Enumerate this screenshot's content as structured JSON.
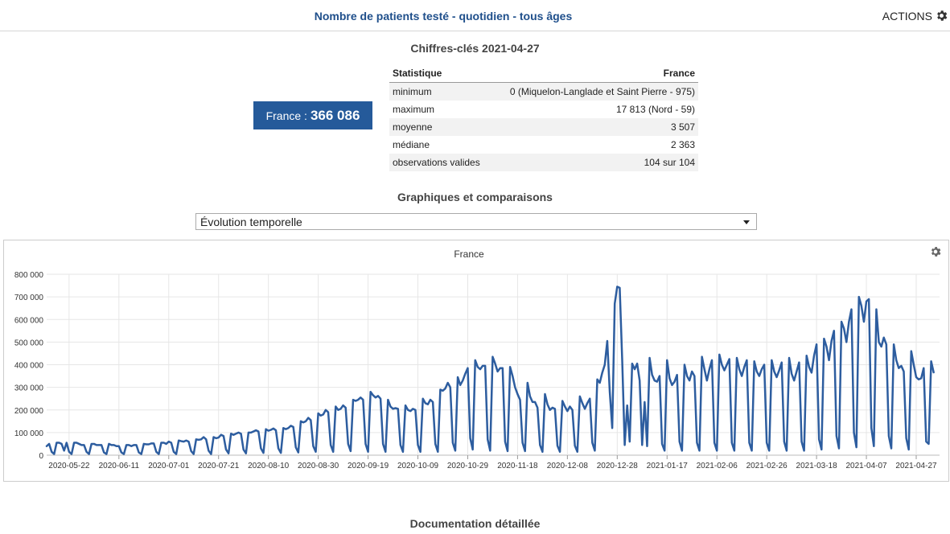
{
  "header": {
    "title": "Nombre de patients testé - quotidien - tous âges",
    "actions_label": "ACTIONS",
    "actions_icon": "gear-icon"
  },
  "key_figures": {
    "title": "Chiffres-clés 2021-04-27",
    "badge_label": "France :",
    "badge_value": "366 086",
    "table": {
      "col_stat": "Statistique",
      "col_region": "France",
      "rows": [
        {
          "label": "minimum",
          "value": "0 (Miquelon-Langlade et Saint Pierre - 975)"
        },
        {
          "label": "maximum",
          "value": "17 813 (Nord - 59)"
        },
        {
          "label": "moyenne",
          "value": "3 507"
        },
        {
          "label": "médiane",
          "value": "2 363"
        },
        {
          "label": "observations valides",
          "value": "104 sur 104"
        }
      ]
    }
  },
  "graphs": {
    "title": "Graphiques et comparaisons",
    "select_value": "Évolution temporelle"
  },
  "documentation": {
    "title": "Documentation détaillée"
  },
  "colors": {
    "accent": "#255a9a",
    "line": "#2d5d9f",
    "title": "#1f4f8b"
  },
  "chart_data": {
    "type": "line",
    "title": "France",
    "xlabel": "",
    "ylabel": "",
    "ylim": [
      0,
      800000
    ],
    "yticks": [
      0,
      100000,
      200000,
      300000,
      400000,
      500000,
      600000,
      700000,
      800000
    ],
    "ytick_labels": [
      "0",
      "100 000",
      "200 000",
      "300 000",
      "400 000",
      "500 000",
      "600 000",
      "700 000",
      "800 000"
    ],
    "xlim": [
      "2020-05-13",
      "2021-04-27"
    ],
    "xtick_labels": [
      "2020-05-22",
      "2020-06-11",
      "2020-07-01",
      "2020-07-21",
      "2020-08-10",
      "2020-08-30",
      "2020-09-19",
      "2020-10-09",
      "2020-10-29",
      "2020-11-18",
      "2020-12-08",
      "2020-12-28",
      "2021-01-17",
      "2021-02-06",
      "2021-02-26",
      "2021-03-18",
      "2021-04-07",
      "2021-04-27"
    ],
    "grid": true,
    "x_start": "2020-05-13",
    "x_step_days": 1,
    "series": [
      {
        "values": [
          40000,
          50000,
          15000,
          5000,
          55000,
          55000,
          50000,
          20000,
          55000,
          15000,
          5000,
          55000,
          55000,
          50000,
          45000,
          45000,
          15000,
          5000,
          50000,
          50000,
          45000,
          45000,
          45000,
          12000,
          5000,
          50000,
          45000,
          45000,
          40000,
          40000,
          12000,
          5000,
          45000,
          45000,
          40000,
          45000,
          45000,
          12000,
          5000,
          50000,
          48000,
          48000,
          52000,
          52000,
          15000,
          5000,
          55000,
          55000,
          50000,
          60000,
          55000,
          15000,
          5000,
          65000,
          62000,
          60000,
          65000,
          60000,
          18000,
          5000,
          70000,
          68000,
          70000,
          80000,
          70000,
          20000,
          5000,
          80000,
          75000,
          78000,
          90000,
          85000,
          25000,
          8000,
          95000,
          90000,
          95000,
          100000,
          95000,
          25000,
          8000,
          100000,
          100000,
          105000,
          110000,
          105000,
          30000,
          10000,
          115000,
          108000,
          112000,
          118000,
          110000,
          30000,
          10000,
          120000,
          115000,
          120000,
          130000,
          125000,
          35000,
          12000,
          150000,
          145000,
          150000,
          165000,
          155000,
          40000,
          15000,
          185000,
          175000,
          180000,
          200000,
          190000,
          45000,
          15000,
          215000,
          200000,
          205000,
          220000,
          210000,
          50000,
          18000,
          245000,
          240000,
          245000,
          255000,
          245000,
          50000,
          15000,
          280000,
          265000,
          255000,
          262000,
          250000,
          50000,
          15000,
          245000,
          215000,
          205000,
          208000,
          205000,
          45000,
          15000,
          220000,
          200000,
          195000,
          205000,
          200000,
          45000,
          15000,
          250000,
          230000,
          225000,
          245000,
          235000,
          50000,
          15000,
          290000,
          285000,
          295000,
          320000,
          300000,
          55000,
          20000,
          345000,
          310000,
          330000,
          360000,
          385000,
          75000,
          25000,
          420000,
          390000,
          380000,
          395000,
          395000,
          70000,
          20000,
          435000,
          405000,
          370000,
          385000,
          385000,
          60000,
          18000,
          390000,
          350000,
          300000,
          270000,
          245000,
          55000,
          18000,
          320000,
          260000,
          235000,
          235000,
          210000,
          45000,
          15000,
          270000,
          225000,
          200000,
          210000,
          205000,
          42000,
          15000,
          240000,
          215000,
          195000,
          215000,
          200000,
          42000,
          15000,
          260000,
          230000,
          205000,
          230000,
          250000,
          55000,
          20000,
          335000,
          320000,
          365000,
          400000,
          505000,
          280000,
          120000,
          670000,
          745000,
          740000,
          420000,
          45000,
          220000,
          60000,
          405000,
          380000,
          405000,
          330000,
          45000,
          235000,
          40000,
          430000,
          355000,
          330000,
          325000,
          350000,
          50000,
          20000,
          420000,
          340000,
          310000,
          325000,
          355000,
          60000,
          20000,
          400000,
          350000,
          330000,
          370000,
          350000,
          55000,
          20000,
          435000,
          380000,
          330000,
          380000,
          420000,
          55000,
          20000,
          445000,
          400000,
          375000,
          400000,
          425000,
          55000,
          20000,
          430000,
          380000,
          350000,
          390000,
          420000,
          55000,
          20000,
          415000,
          370000,
          350000,
          380000,
          400000,
          55000,
          20000,
          420000,
          370000,
          345000,
          375000,
          410000,
          60000,
          20000,
          430000,
          360000,
          330000,
          370000,
          410000,
          60000,
          20000,
          440000,
          390000,
          365000,
          440000,
          490000,
          70000,
          25000,
          515000,
          480000,
          420000,
          505000,
          550000,
          85000,
          30000,
          590000,
          560000,
          500000,
          590000,
          645000,
          100000,
          35000,
          700000,
          660000,
          590000,
          680000,
          690000,
          120000,
          40000,
          645000,
          500000,
          480000,
          520000,
          490000,
          85000,
          30000,
          490000,
          420000,
          385000,
          395000,
          370000,
          75000,
          25000,
          460000,
          400000,
          345000,
          335000,
          340000,
          385000,
          60000,
          50000,
          415000,
          366086
        ]
      }
    ]
  }
}
